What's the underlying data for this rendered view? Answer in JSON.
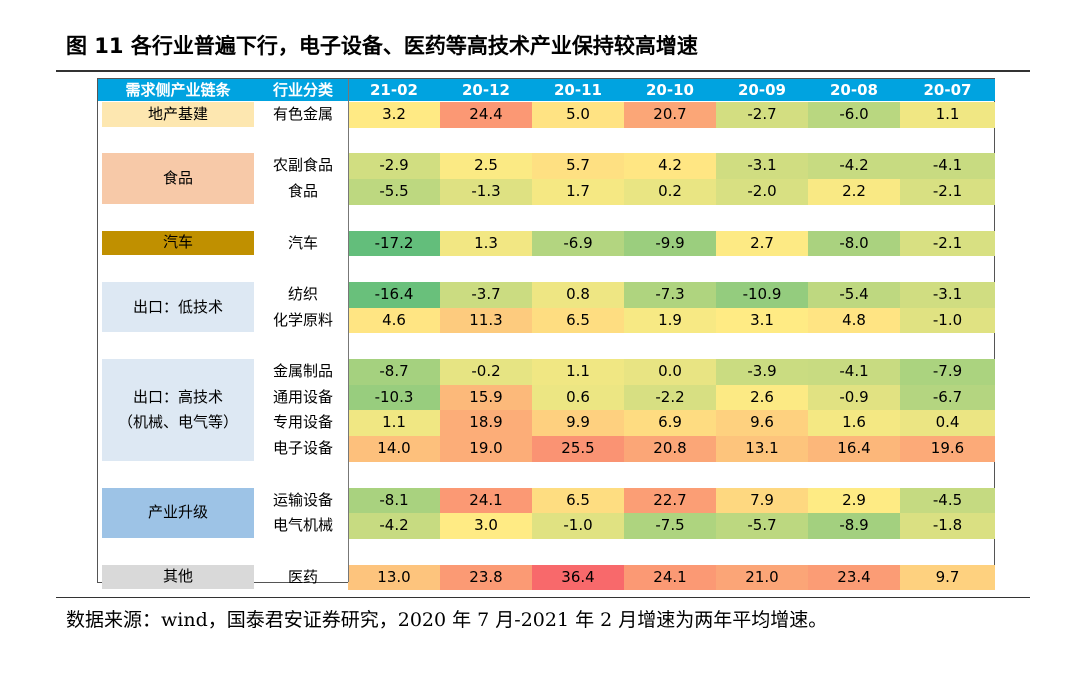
{
  "title": "图 11 各行业普遍下行，电子设备、医药等高技术产业保持较高增速",
  "source": "数据来源：wind，国泰君安证券研究，2020 年 7 月-2021 年 2 月增速为两年平均增速。",
  "colors": {
    "header_bg": "#00a3e0",
    "chain_colors": [
      "#fde7b0",
      "#f7c9a8",
      "#c09000",
      "#dde8f3",
      "#dde8f3",
      "#9dc3e6",
      "#d9d9d9"
    ]
  },
  "chart_data": {
    "type": "table",
    "headers": [
      "需求侧产业链条",
      "行业分类",
      "21-02",
      "20-12",
      "20-11",
      "20-10",
      "20-09",
      "20-08",
      "20-07"
    ],
    "periods": [
      "21-02",
      "20-12",
      "20-11",
      "20-10",
      "20-09",
      "20-08",
      "20-07"
    ],
    "groups": [
      {
        "chain": "地产基建",
        "rows": [
          {
            "industry": "有色金属",
            "values": [
              "3.2",
              "24.4",
              "5.0",
              "20.7",
              "-2.7",
              "-6.0",
              "1.1"
            ]
          }
        ]
      },
      {
        "chain": "食品",
        "rows": [
          {
            "industry": "农副食品",
            "values": [
              "-2.9",
              "2.5",
              "5.7",
              "4.2",
              "-3.1",
              "-4.2",
              "-4.1"
            ]
          },
          {
            "industry": "食品",
            "values": [
              "-5.5",
              "-1.3",
              "1.7",
              "0.2",
              "-2.0",
              "2.2",
              "-2.1"
            ]
          }
        ]
      },
      {
        "chain": "汽车",
        "rows": [
          {
            "industry": "汽车",
            "values": [
              "-17.2",
              "1.3",
              "-6.9",
              "-9.9",
              "2.7",
              "-8.0",
              "-2.1"
            ]
          }
        ]
      },
      {
        "chain": "出口：低技术",
        "rows": [
          {
            "industry": "纺织",
            "values": [
              "-16.4",
              "-3.7",
              "0.8",
              "-7.3",
              "-10.9",
              "-5.4",
              "-3.1"
            ]
          },
          {
            "industry": "化学原料",
            "values": [
              "4.6",
              "11.3",
              "6.5",
              "1.9",
              "3.1",
              "4.8",
              "-1.0"
            ]
          }
        ]
      },
      {
        "chain": "出口：高技术\n（机械、电气等）",
        "rows": [
          {
            "industry": "金属制品",
            "values": [
              "-8.7",
              "-0.2",
              "1.1",
              "0.0",
              "-3.9",
              "-4.1",
              "-7.9"
            ]
          },
          {
            "industry": "通用设备",
            "values": [
              "-10.3",
              "15.9",
              "0.6",
              "-2.2",
              "2.6",
              "-0.9",
              "-6.7"
            ]
          },
          {
            "industry": "专用设备",
            "values": [
              "1.1",
              "18.9",
              "9.9",
              "6.9",
              "9.6",
              "1.6",
              "0.4"
            ]
          },
          {
            "industry": "电子设备",
            "values": [
              "14.0",
              "19.0",
              "25.5",
              "20.8",
              "13.1",
              "16.4",
              "19.6"
            ]
          }
        ]
      },
      {
        "chain": "产业升级",
        "rows": [
          {
            "industry": "运输设备",
            "values": [
              "-8.1",
              "24.1",
              "6.5",
              "22.7",
              "7.9",
              "2.9",
              "-4.5"
            ]
          },
          {
            "industry": "电气机械",
            "values": [
              "-4.2",
              "3.0",
              "-1.0",
              "-7.5",
              "-5.7",
              "-8.9",
              "-1.8"
            ]
          }
        ]
      },
      {
        "chain": "其他",
        "rows": [
          {
            "industry": "医药",
            "values": [
              "13.0",
              "23.8",
              "36.4",
              "24.1",
              "21.0",
              "23.4",
              "9.7"
            ]
          }
        ]
      }
    ],
    "color_scale": {
      "min": -17.2,
      "mid": 3.0,
      "max": 36.4,
      "low": "#63be7b",
      "middle": "#ffeb84",
      "high": "#f8696b"
    }
  }
}
